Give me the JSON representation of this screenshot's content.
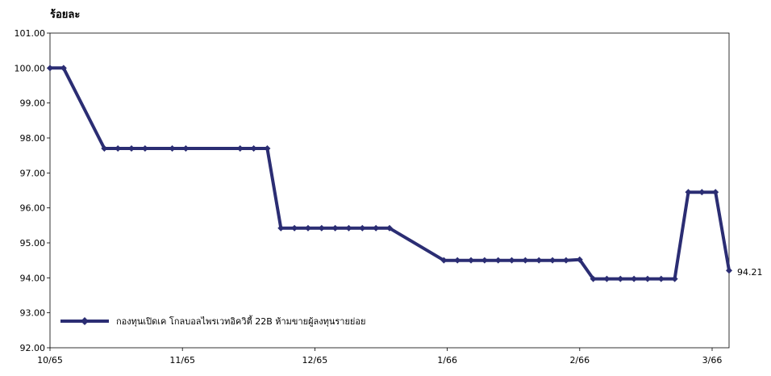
{
  "chart_data": {
    "type": "line",
    "ylabel": "ร้อยละ",
    "title": "",
    "xlabel": "",
    "ylim": [
      92,
      101
    ],
    "yticks": [
      "101.00",
      "100.00",
      "99.00",
      "98.00",
      "97.00",
      "96.00",
      "95.00",
      "94.00",
      "93.00",
      "92.00"
    ],
    "xticks": [
      "10/65",
      "11/65",
      "12/65",
      "1/66",
      "2/66",
      "3/66"
    ],
    "grid": false,
    "legend_position": "bottom-left",
    "line_color": "#2b2d73",
    "series": [
      {
        "name": "กองทุนเปิดเค โกลบอลไพรเวทอิควิตี้ 22B ห้ามขายผู้ลงทุนรายย่อย",
        "x": [
          0,
          1,
          4,
          5,
          6,
          7,
          9,
          10,
          14,
          15,
          16,
          17,
          18,
          19,
          20,
          21,
          22,
          23,
          24,
          25,
          29,
          30,
          31,
          32,
          33,
          34,
          35,
          36,
          37,
          38,
          39,
          40,
          41,
          42,
          43,
          44,
          45,
          46,
          47,
          48,
          49,
          50
        ],
        "values": [
          100.0,
          100.0,
          97.7,
          97.7,
          97.7,
          97.7,
          97.7,
          97.7,
          97.7,
          97.7,
          97.7,
          95.42,
          95.42,
          95.42,
          95.42,
          95.42,
          95.42,
          95.42,
          95.42,
          95.42,
          94.5,
          94.5,
          94.5,
          94.5,
          94.5,
          94.5,
          94.5,
          94.5,
          94.5,
          94.5,
          94.52,
          93.97,
          93.97,
          93.97,
          93.97,
          93.97,
          93.97,
          93.97,
          96.45,
          96.45,
          96.45,
          94.21
        ]
      }
    ],
    "last_value_label": "94.21"
  }
}
